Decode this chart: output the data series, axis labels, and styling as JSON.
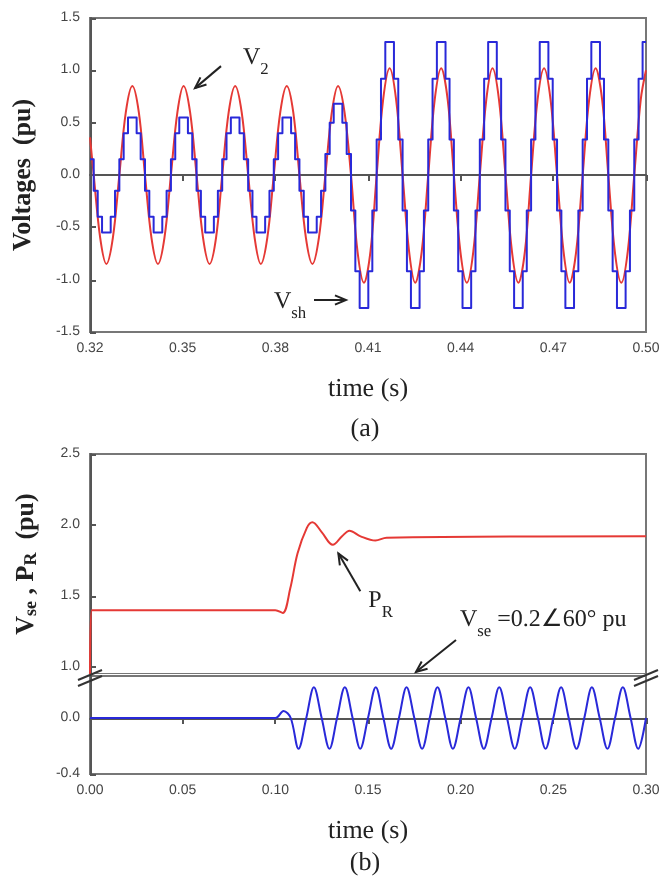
{
  "chart_data": [
    {
      "type": "line",
      "xlabel": "time (s)",
      "ylabel": "Voltages  (pu)",
      "xlim": [
        0.32,
        0.5
      ],
      "xticks": [
        0.32,
        0.35,
        0.38,
        0.41,
        0.44,
        0.47,
        {
          "value": 0.5,
          "label": "0.50"
        }
      ],
      "ylim": [
        -1.5,
        1.5
      ],
      "yticks": [
        -1.5,
        {
          "value": -1,
          "label": "-1.0"
        },
        -0.5,
        {
          "value": 0,
          "label": "0.0"
        },
        0.5,
        {
          "value": 1,
          "label": "1.0"
        },
        1.5
      ],
      "annotations": [
        {
          "text": "V$_{2}$",
          "x": 0.354,
          "y": 0.83
        },
        "V$_{sh}$",
        "(a)"
      ],
      "series": [
        {
          "type": "line",
          "color": "#e53935",
          "x": [
            0.32,
            0.3212,
            0.3233,
            0.3253,
            0.3274,
            0.3295,
            0.3316,
            0.3337,
            0.3358,
            0.3378,
            0.3399,
            0.342,
            0.3441,
            0.3462,
            0.3483,
            0.3503,
            0.3524,
            0.3545,
            0.3566,
            0.3587,
            0.3608,
            0.3628,
            0.3649,
            0.367,
            0.3691,
            0.3712,
            0.3733,
            0.3753,
            0.3774,
            0.3795,
            0.3816,
            0.3837,
            0.3858,
            0.3878,
            0.3899,
            0.392,
            0.3941,
            0.3962,
            0.3983,
            0.4003,
            0.4024,
            0.4045,
            0.4066,
            0.4087,
            0.4108,
            0.4128,
            0.4149,
            0.417,
            0.4191,
            0.4212,
            0.4233,
            0.4253,
            0.4274,
            0.4295,
            0.4316,
            0.4337,
            0.4358,
            0.4378,
            0.4399,
            0.442,
            0.4441,
            0.4462,
            0.4483,
            0.4503,
            0.4524,
            0.4545,
            0.4566,
            0.4587,
            0.4608,
            0.4628,
            0.4649,
            0.467,
            0.4691,
            0.4712,
            0.4733,
            0.4753,
            0.4774,
            0.4795,
            0.4816,
            0.4837,
            0.4858,
            0.4878,
            0.4899,
            0.492,
            0.4941,
            0.4962,
            0.4983,
            0.5
          ],
          "values": [
            0.36,
            0,
            -0.6,
            -0.85,
            -0.6,
            0,
            0.6,
            0.85,
            0.6,
            0,
            -0.6,
            -0.85,
            -0.6,
            0,
            0.6,
            0.85,
            0.6,
            0,
            -0.6,
            -0.85,
            -0.6,
            0,
            0.6,
            0.85,
            0.6,
            0,
            -0.6,
            -0.85,
            -0.6,
            0,
            0.6,
            0.85,
            0.6,
            0,
            -0.6,
            -0.85,
            -0.6,
            0,
            0.6,
            0.85,
            0.6,
            0,
            -0.73,
            -1.03,
            -0.73,
            0,
            0.72,
            1.02,
            0.72,
            0,
            -0.73,
            -1.03,
            -0.73,
            0,
            0.72,
            1.02,
            0.72,
            0,
            -0.73,
            -1.03,
            -0.73,
            0,
            0.72,
            1.02,
            0.72,
            0,
            -0.73,
            -1.03,
            -0.73,
            0,
            0.72,
            1.02,
            0.72,
            0,
            -0.73,
            -1.03,
            -0.73,
            0,
            0.72,
            1.02,
            0.72,
            0,
            -0.73,
            -1.03,
            -0.73,
            0,
            0.72,
            1.0
          ]
        },
        {
          "type": "step",
          "color": "#2929d9",
          "x": [
            0.32,
            0.3212,
            0.3225,
            0.3239,
            0.3267,
            0.3281,
            0.3295,
            0.3309,
            0.3323,
            0.3351,
            0.3364,
            0.3378,
            0.3392,
            0.3406,
            0.3434,
            0.3448,
            0.3462,
            0.3476,
            0.3489,
            0.3517,
            0.3531,
            0.3545,
            0.3559,
            0.3573,
            0.3601,
            0.3614,
            0.3628,
            0.3642,
            0.3656,
            0.3684,
            0.3698,
            0.3712,
            0.3726,
            0.3739,
            0.3767,
            0.3781,
            0.3795,
            0.3809,
            0.3823,
            0.3851,
            0.3864,
            0.3878,
            0.3892,
            0.3906,
            0.3934,
            0.3948,
            0.3962,
            0.3976,
            0.3989,
            0.4017,
            0.4031,
            0.4045,
            0.4059,
            0.4073,
            0.4101,
            0.4114,
            0.4128,
            0.4142,
            0.4156,
            0.4184,
            0.4198,
            0.4212,
            0.4226,
            0.4239,
            0.4267,
            0.4281,
            0.4295,
            0.4309,
            0.4323,
            0.4351,
            0.4364,
            0.4378,
            0.4392,
            0.4406,
            0.4434,
            0.4448,
            0.4462,
            0.4476,
            0.4489,
            0.4517,
            0.4531,
            0.4545,
            0.4559,
            0.4573,
            0.4601,
            0.4614,
            0.4628,
            0.4642,
            0.4656,
            0.4684,
            0.4698,
            0.4712,
            0.4726,
            0.4739,
            0.4767,
            0.4781,
            0.4795,
            0.4809,
            0.4823,
            0.4851,
            0.4864,
            0.4878,
            0.4892,
            0.4906,
            0.4934,
            0.4948,
            0.4962,
            0.4976,
            0.4989,
            0.5
          ],
          "values": [
            0.15,
            -0.15,
            -0.4,
            -0.55,
            -0.4,
            -0.15,
            0.15,
            0.4,
            0.55,
            0.4,
            0.15,
            -0.15,
            -0.4,
            -0.55,
            -0.4,
            -0.15,
            0.15,
            0.4,
            0.55,
            0.4,
            0.15,
            -0.15,
            -0.4,
            -0.55,
            -0.4,
            -0.15,
            0.15,
            0.4,
            0.55,
            0.4,
            0.15,
            -0.15,
            -0.4,
            -0.55,
            -0.4,
            -0.15,
            0.15,
            0.4,
            0.55,
            0.4,
            0.15,
            -0.15,
            -0.4,
            -0.55,
            -0.4,
            -0.15,
            0.2,
            0.5,
            0.68,
            0.5,
            0.2,
            -0.34,
            -0.92,
            -1.27,
            -0.92,
            -0.34,
            0.34,
            0.92,
            1.27,
            0.92,
            0.34,
            -0.34,
            -0.92,
            -1.27,
            -0.92,
            -0.34,
            0.34,
            0.92,
            1.27,
            0.92,
            0.34,
            -0.34,
            -0.92,
            -1.27,
            -0.92,
            -0.34,
            0.34,
            0.92,
            1.27,
            0.92,
            0.34,
            -0.34,
            -0.92,
            -1.27,
            -0.92,
            -0.34,
            0.34,
            0.92,
            1.27,
            0.92,
            0.34,
            -0.34,
            -0.92,
            -1.27,
            -0.92,
            -0.34,
            0.34,
            0.92,
            1.27,
            0.92,
            0.34,
            -0.34,
            -0.92,
            -1.27,
            -0.92,
            -0.34,
            0.34,
            0.92,
            1.27,
            1.27
          ]
        }
      ]
    },
    {
      "type": "line",
      "ylabel": "V$_{se}$ , P$_{R}$  (pu)",
      "xlim": [
        0,
        0.3
      ],
      "ylim": [
        0.95,
        2.5
      ],
      "yticks": [
        {
          "value": 1,
          "label": "1.0"
        },
        1.5,
        {
          "value": 2,
          "label": "2.0"
        },
        2.5
      ],
      "tick_labels": "y",
      "annotations": [
        {
          "text": "P$_{R}$",
          "x": 0.134,
          "y": 1.8
        }
      ],
      "series": [
        {
          "type": "line",
          "color": "#e53935",
          "x": [
            0,
            0.001,
            0.1,
            0.104,
            0.108,
            0.112,
            0.117,
            0.12,
            0.125,
            0.131,
            0.136,
            0.14,
            0.146,
            0.154,
            0.16,
            0.3
          ],
          "values": [
            0.95,
            1.4,
            1.4,
            1.38,
            1.55,
            1.8,
            1.98,
            2.02,
            1.95,
            1.86,
            1.92,
            1.96,
            1.92,
            1.89,
            1.91,
            1.92
          ]
        }
      ]
    },
    {
      "type": "line",
      "xlabel": "time (s)",
      "xlim": [
        0,
        0.3
      ],
      "xticks": [
        {
          "value": 0,
          "label": "0.00"
        },
        0.05,
        {
          "value": 0.1,
          "label": "0.10"
        },
        0.15,
        {
          "value": 0.2,
          "label": "0.20"
        },
        0.25,
        {
          "value": 0.3,
          "label": "0.30"
        }
      ],
      "ylim": [
        -0.4,
        0.3
      ],
      "yticks": [
        -0.4,
        {
          "value": 0,
          "label": "0.0"
        }
      ],
      "annotations": [
        "V$_{se}$ =0.2∠60° pu",
        "(b)"
      ],
      "series": [
        {
          "type": "line",
          "color": "#2929d9",
          "x": [
            0,
            0.1,
            0.1044,
            0.1083,
            0.1125,
            0.1167,
            0.1208,
            0.125,
            0.1292,
            0.1333,
            0.1375,
            0.1417,
            0.1458,
            0.15,
            0.1542,
            0.1583,
            0.1625,
            0.1667,
            0.1708,
            0.175,
            0.1792,
            0.1833,
            0.1875,
            0.1917,
            0.1958,
            0.2,
            0.2042,
            0.2083,
            0.2125,
            0.2167,
            0.2208,
            0.225,
            0.2292,
            0.2333,
            0.2375,
            0.2417,
            0.2458,
            0.25,
            0.2542,
            0.2583,
            0.2625,
            0.2667,
            0.2708,
            0.275,
            0.2792,
            0.2833,
            0.2875,
            0.2917,
            0.2958,
            0.3
          ],
          "values": [
            0,
            0,
            0.05,
            0,
            -0.22,
            0,
            0.22,
            0,
            -0.22,
            0,
            0.22,
            0,
            -0.22,
            0,
            0.22,
            0,
            -0.22,
            0,
            0.22,
            0,
            -0.22,
            0,
            0.22,
            0,
            -0.22,
            0,
            0.22,
            0,
            -0.22,
            0,
            0.22,
            0,
            -0.22,
            0,
            0.22,
            0,
            -0.22,
            0,
            0.22,
            0,
            -0.22,
            0,
            0.22,
            0,
            -0.22,
            0,
            0.22,
            0,
            -0.22,
            0
          ]
        }
      ]
    }
  ]
}
